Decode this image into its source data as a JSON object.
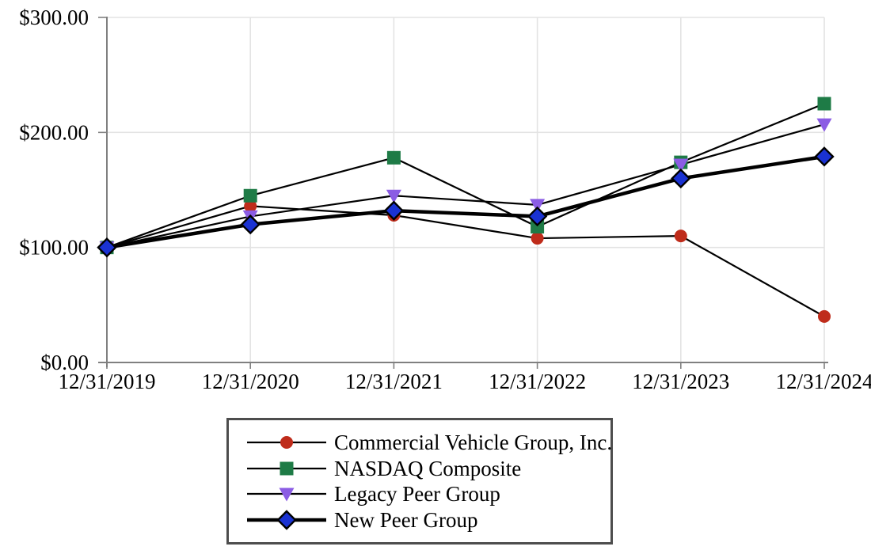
{
  "chart_data": {
    "type": "line",
    "title": "",
    "categories": [
      "12/31/2019",
      "12/31/2020",
      "12/31/2021",
      "12/31/2022",
      "12/31/2023",
      "12/31/2024"
    ],
    "y_ticks": [
      0,
      100,
      200,
      300
    ],
    "y_tick_labels": [
      "$0.00",
      "$100.00",
      "$200.00",
      "$300.00"
    ],
    "ylim": [
      0,
      300
    ],
    "grid": true,
    "legend_position": "bottom",
    "series": [
      {
        "name": "Commercial Vehicle Group, Inc.",
        "marker": "circle",
        "marker_color": "#bf2c1b",
        "line_color": "#000000",
        "line_width": 2.2,
        "values": [
          100,
          136,
          128,
          108,
          110,
          40
        ]
      },
      {
        "name": "NASDAQ Composite",
        "marker": "square",
        "marker_color": "#1e7b46",
        "line_color": "#000000",
        "line_width": 2.2,
        "values": [
          100,
          145,
          178,
          118,
          174,
          225
        ]
      },
      {
        "name": "Legacy Peer Group",
        "marker": "triangle-down",
        "marker_color": "#8b5ce4",
        "line_color": "#000000",
        "line_width": 2.2,
        "values": [
          100,
          127,
          145,
          137,
          172,
          207
        ]
      },
      {
        "name": "New Peer Group",
        "marker": "diamond",
        "marker_color": "#1a32d2",
        "marker_outline": "#000000",
        "line_color": "#000000",
        "line_width": 4.5,
        "values": [
          100,
          120,
          132,
          127,
          160,
          179
        ]
      }
    ],
    "colors": {
      "grid": "#e3e3e3",
      "axis": "#808080",
      "text": "#000000"
    }
  }
}
